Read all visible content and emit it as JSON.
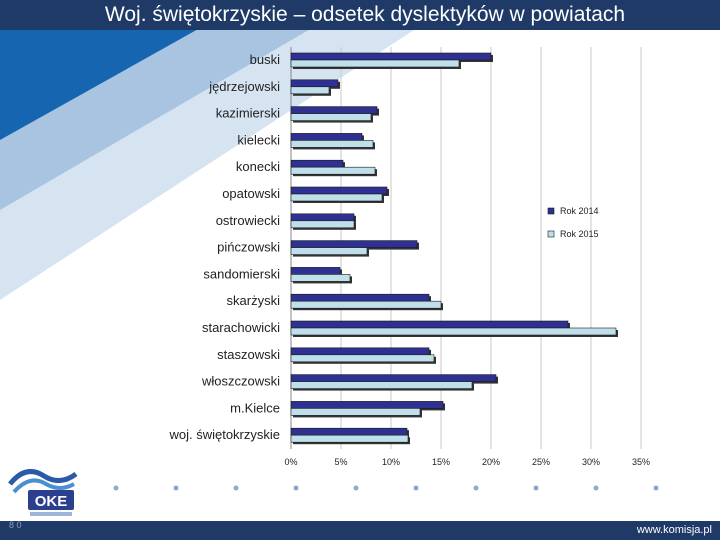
{
  "title": "Woj. świętokrzyskie – odsetek dyslektyków w powiatach",
  "footer": {
    "url": "www.komisja.pl",
    "page_number": "8 0"
  },
  "logo": {
    "text": "OKE"
  },
  "colors": {
    "header": "#1f3a66",
    "series_2014": "#2e3192",
    "series_2015": "#bfe0ea",
    "accent_blue": "#1565b0"
  },
  "chart_data": {
    "type": "bar",
    "orientation": "horizontal",
    "title": "Woj. świętokrzyskie – odsetek dyslektyków w powiatach",
    "categories": [
      "buski",
      "jędrzejowski",
      "kazimierski",
      "kielecki",
      "konecki",
      "opatowski",
      "ostrowiecki",
      "pińczowski",
      "sandomierski",
      "skarżyski",
      "starachowicki",
      "staszowski",
      "włoszczowski",
      "m.Kielce",
      "woj. świętokrzyskie"
    ],
    "series": [
      {
        "name": "Rok 2014",
        "color": "#2e3192",
        "values": [
          20.0,
          4.7,
          8.6,
          7.1,
          5.2,
          9.6,
          6.3,
          12.6,
          4.9,
          13.8,
          27.7,
          13.8,
          20.5,
          15.2,
          11.6
        ]
      },
      {
        "name": "Rok 2015",
        "color": "#bfe0ea",
        "values": [
          16.8,
          3.8,
          8.0,
          8.2,
          8.4,
          9.1,
          6.3,
          7.6,
          5.9,
          15.0,
          32.5,
          14.3,
          18.1,
          12.9,
          11.7
        ]
      }
    ],
    "xticks": [
      "0%",
      "5%",
      "10%",
      "15%",
      "20%",
      "25%",
      "30%",
      "35%"
    ],
    "xlim": [
      0,
      35
    ],
    "legend": "right",
    "grid": true
  }
}
